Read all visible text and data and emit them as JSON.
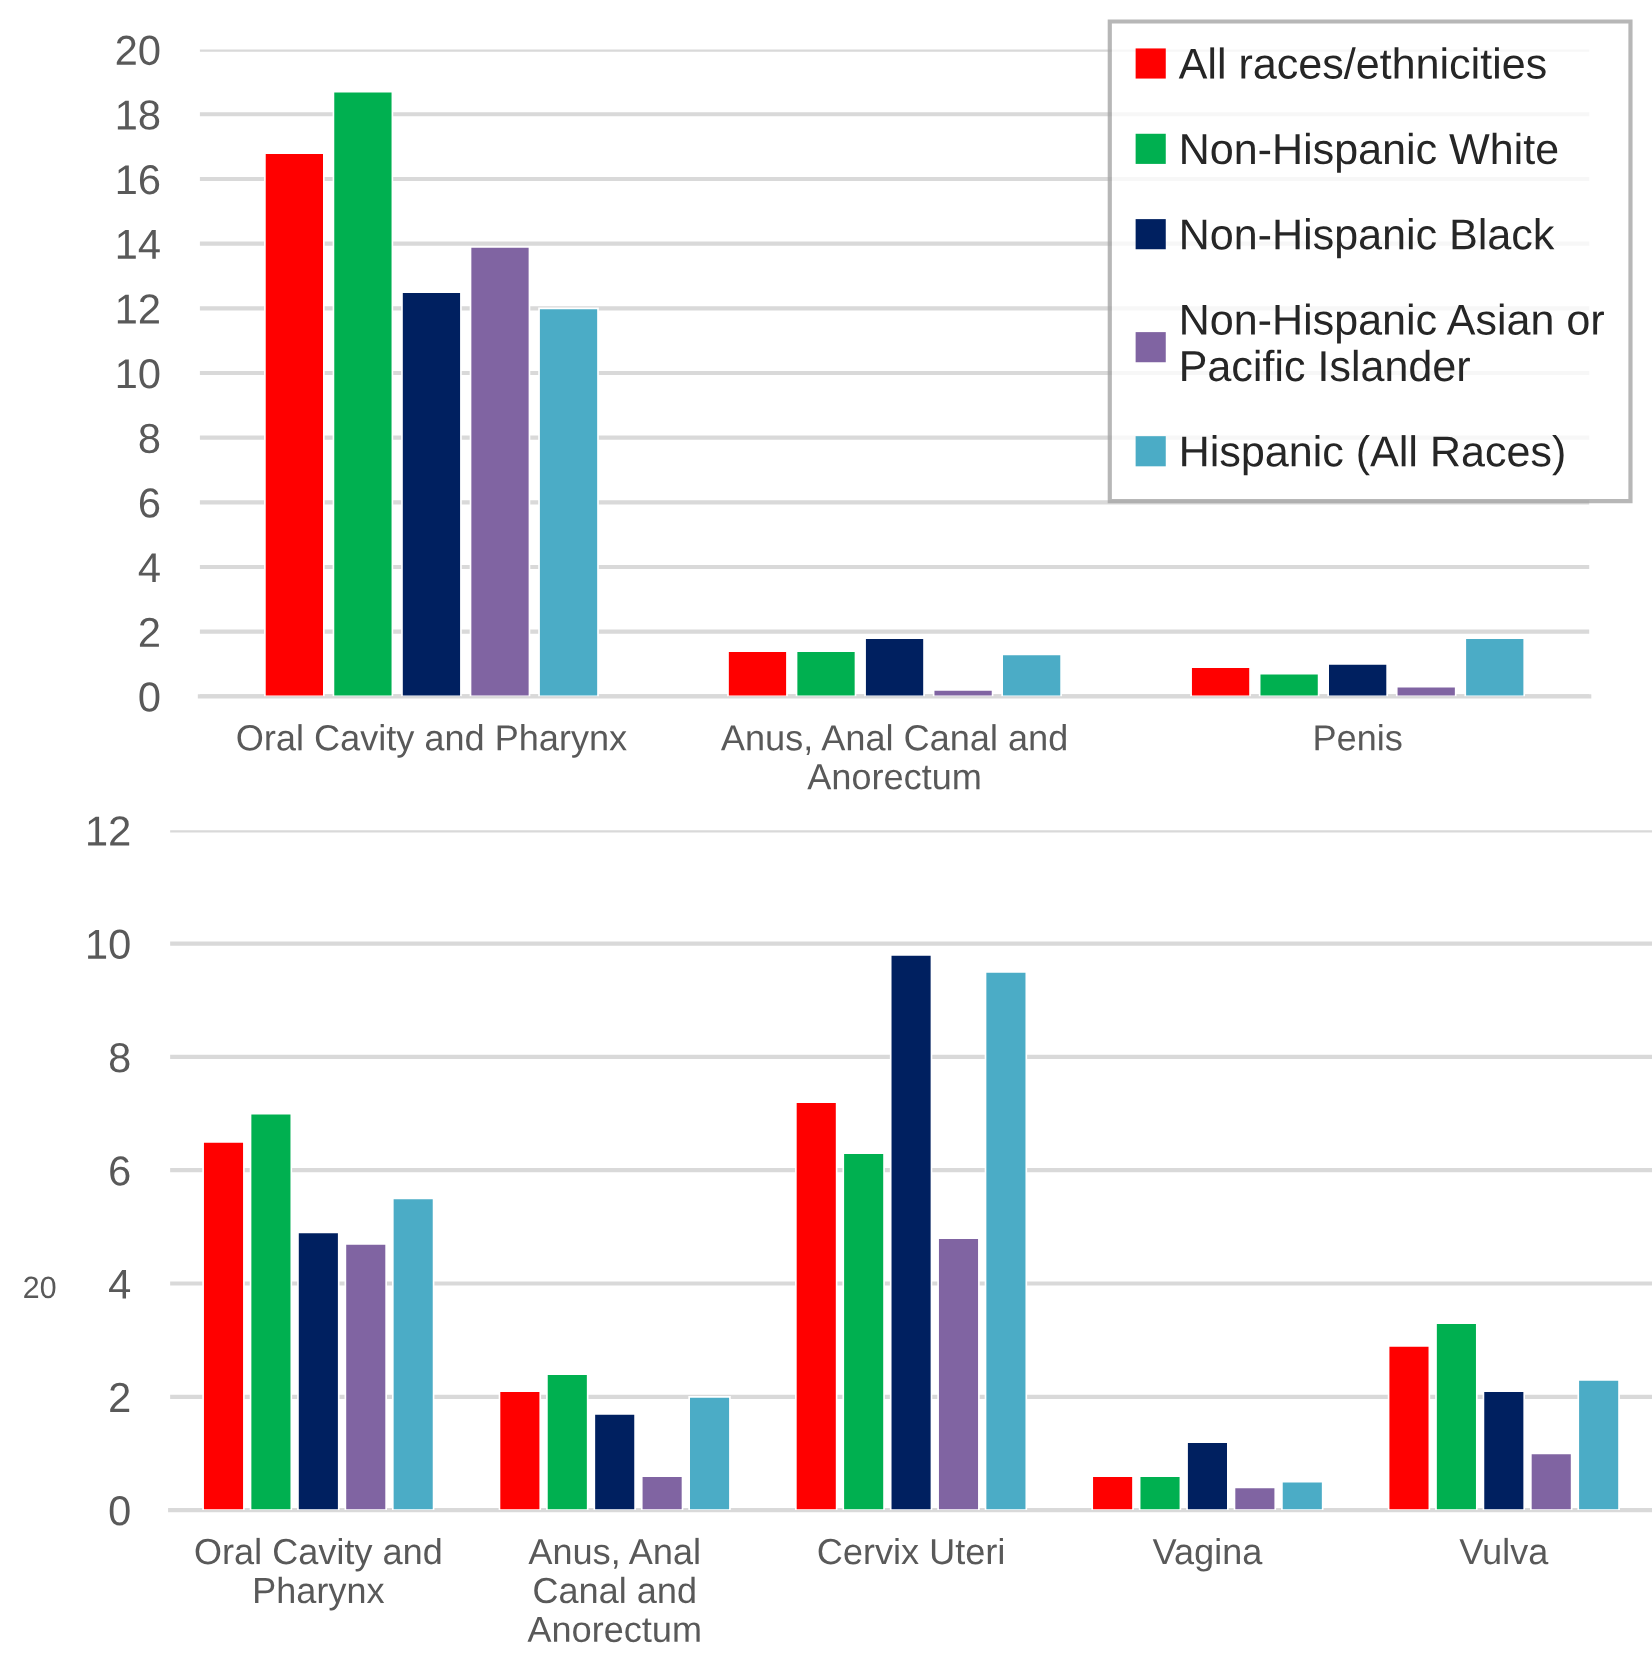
{
  "chart_data": [
    {
      "type": "bar",
      "categories": [
        "Oral Cavity and Pharynx",
        "Anus, Anal Canal and\nAnorectum",
        "Penis"
      ],
      "series": [
        {
          "name": "All races/ethnicities",
          "color": "#ff0000",
          "values": [
            16.8,
            1.4,
            0.9
          ]
        },
        {
          "name": "Non-Hispanic White",
          "color": "#00b050",
          "values": [
            18.7,
            1.4,
            0.7
          ]
        },
        {
          "name": "Non-Hispanic Black",
          "color": "#002060",
          "values": [
            12.5,
            1.8,
            1.0
          ]
        },
        {
          "name": "Non-Hispanic Asian or\nPacific Islander",
          "color": "#8064a2",
          "values": [
            13.9,
            0.2,
            0.3
          ]
        },
        {
          "name": "Hispanic (All Races)",
          "color": "#4bacc6",
          "values": [
            12.0,
            1.3,
            1.8
          ]
        }
      ],
      "ylim": [
        0,
        20
      ],
      "yticks": [
        0,
        2,
        4,
        6,
        8,
        10,
        12,
        14,
        16,
        18,
        20
      ],
      "grid": "y",
      "legend": "top right"
    },
    {
      "type": "bar",
      "categories": [
        "Oral Cavity and\nPharynx",
        "Anus, Anal\nCanal and\nAnorectum",
        "Cervix Uteri",
        "Vagina",
        "Vulva"
      ],
      "series": [
        {
          "color": "#ff0000",
          "values": [
            6.5,
            2.1,
            7.2,
            0.6,
            2.9
          ]
        },
        {
          "color": "#00b050",
          "values": [
            7.0,
            2.4,
            6.3,
            0.6,
            3.3
          ]
        },
        {
          "color": "#002060",
          "values": [
            4.9,
            1.7,
            9.8,
            1.2,
            2.1
          ]
        },
        {
          "color": "#8064a2",
          "values": [
            4.7,
            0.6,
            4.8,
            0.4,
            1.0
          ]
        },
        {
          "color": "#4bacc6",
          "values": [
            5.5,
            2.0,
            9.5,
            0.5,
            2.3
          ]
        }
      ],
      "ylim": [
        0,
        12
      ],
      "yticks": [
        0,
        2,
        4,
        6,
        8,
        10,
        12
      ],
      "grid": "y",
      "annotations": [
        "20"
      ]
    }
  ]
}
